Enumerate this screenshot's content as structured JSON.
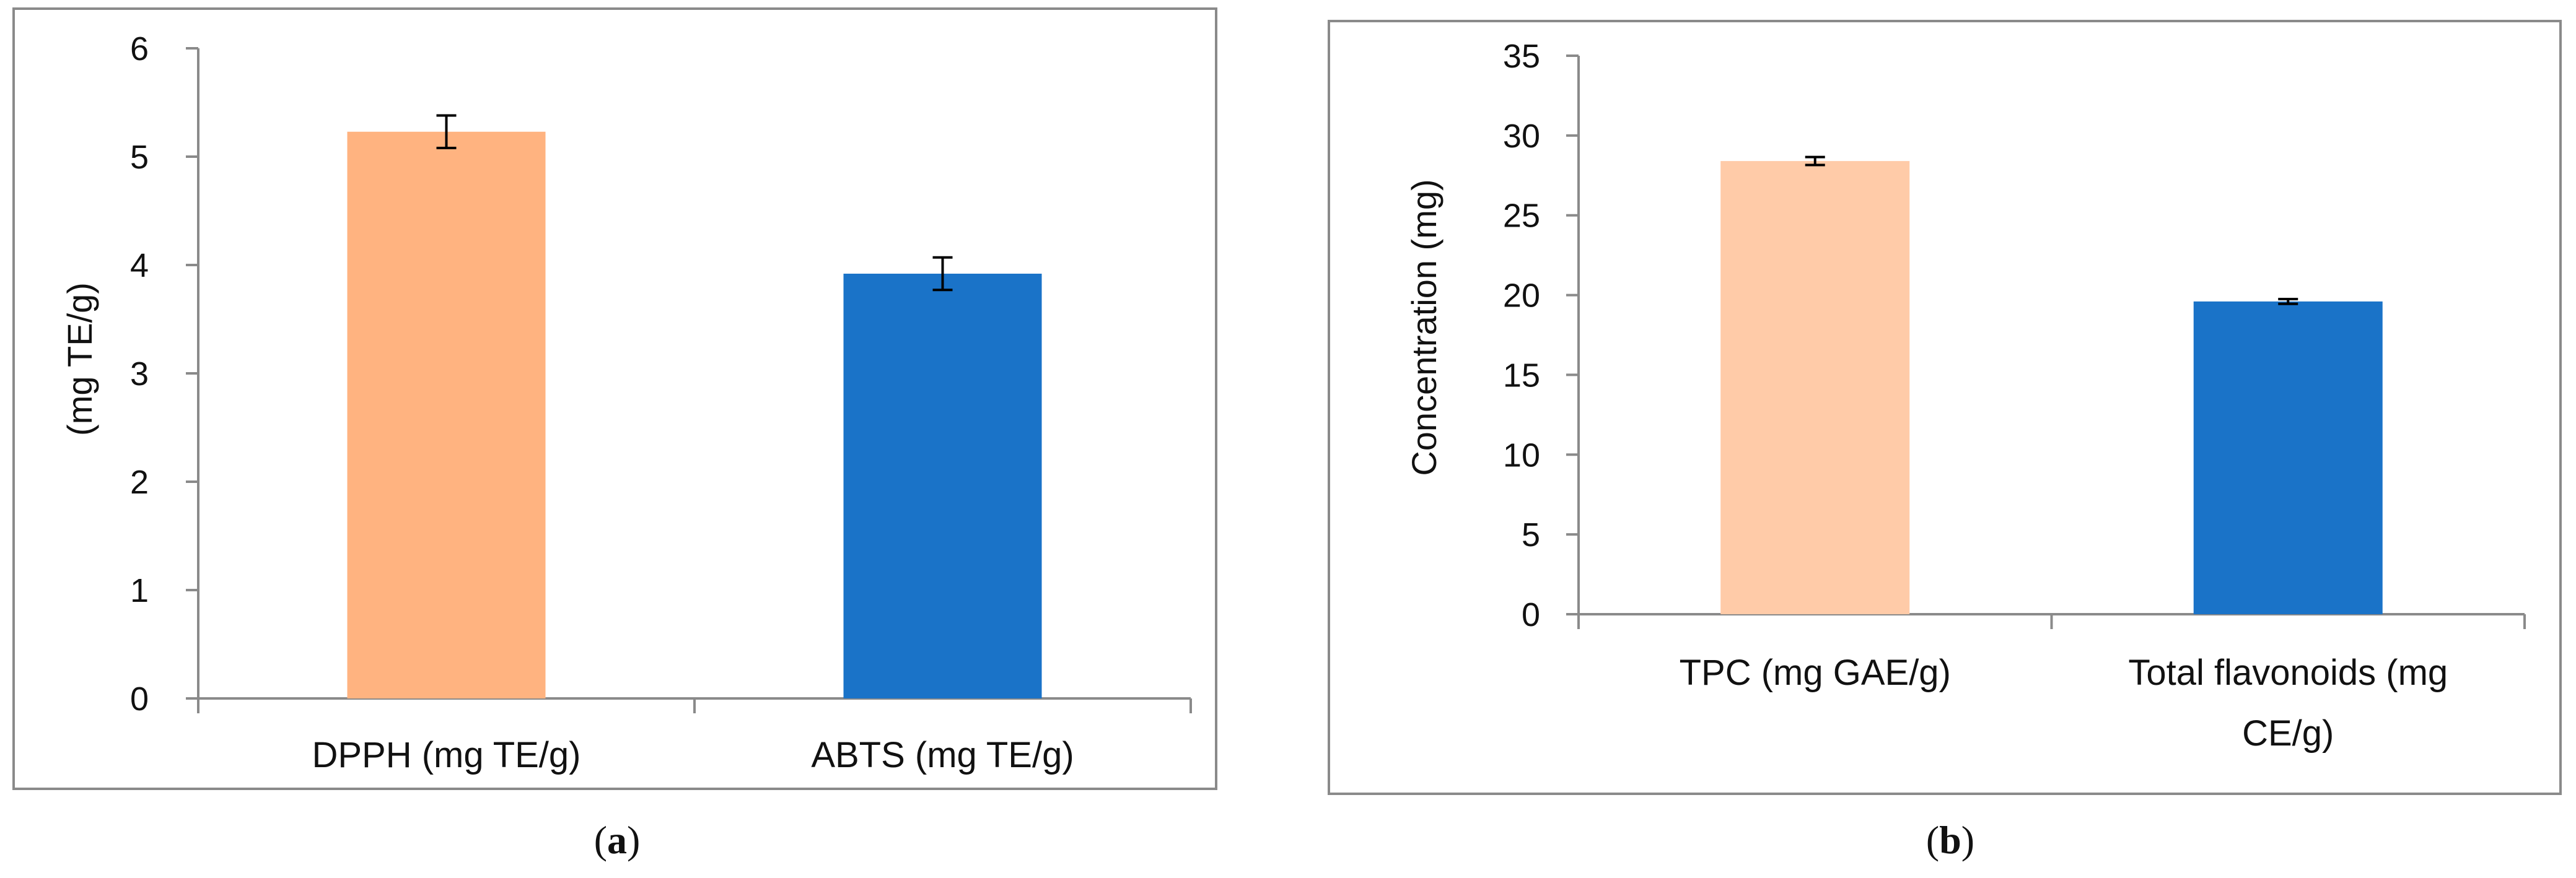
{
  "chart_data": [
    {
      "type": "bar",
      "caption": "a",
      "categories": [
        "DPPH (mg TE/g)",
        "ABTS (mg TE/g)"
      ],
      "values": [
        5.23,
        3.92
      ],
      "errors": [
        0.15,
        0.15
      ],
      "colors": [
        "#FFB380",
        "#1A73C8"
      ],
      "title": "",
      "xlabel": "",
      "ylabel": "(mg TE/g)",
      "ylim": [
        0,
        6
      ],
      "yticks": [
        0,
        1,
        2,
        3,
        4,
        5,
        6
      ],
      "ytick_labels": [
        "0",
        "1",
        "2",
        "3",
        "4",
        "5",
        "6"
      ],
      "grid": false
    },
    {
      "type": "bar",
      "caption": "b",
      "categories": [
        "TPC (mg GAE/g)",
        "Total flavonoids (mg CE/g)"
      ],
      "category_lines": [
        [
          "TPC (mg GAE/g)"
        ],
        [
          "Total flavonoids (mg",
          "CE/g)"
        ]
      ],
      "values": [
        28.4,
        19.6
      ],
      "errors": [
        0.25,
        0.15
      ],
      "colors": [
        "#FFCBA8",
        "#1A73C8"
      ],
      "title": "",
      "xlabel": "",
      "ylabel": "Concentration (mg)",
      "ylim": [
        0,
        35
      ],
      "yticks": [
        0,
        5,
        10,
        15,
        20,
        25,
        30,
        35
      ],
      "ytick_labels": [
        "0",
        "5",
        "10",
        "15",
        "20",
        "25",
        "30",
        "35"
      ],
      "grid": false
    }
  ],
  "captions": {
    "a": {
      "open": "(",
      "letter": "a",
      "close": ")"
    },
    "b": {
      "open": "(",
      "letter": "b",
      "close": ")"
    }
  }
}
